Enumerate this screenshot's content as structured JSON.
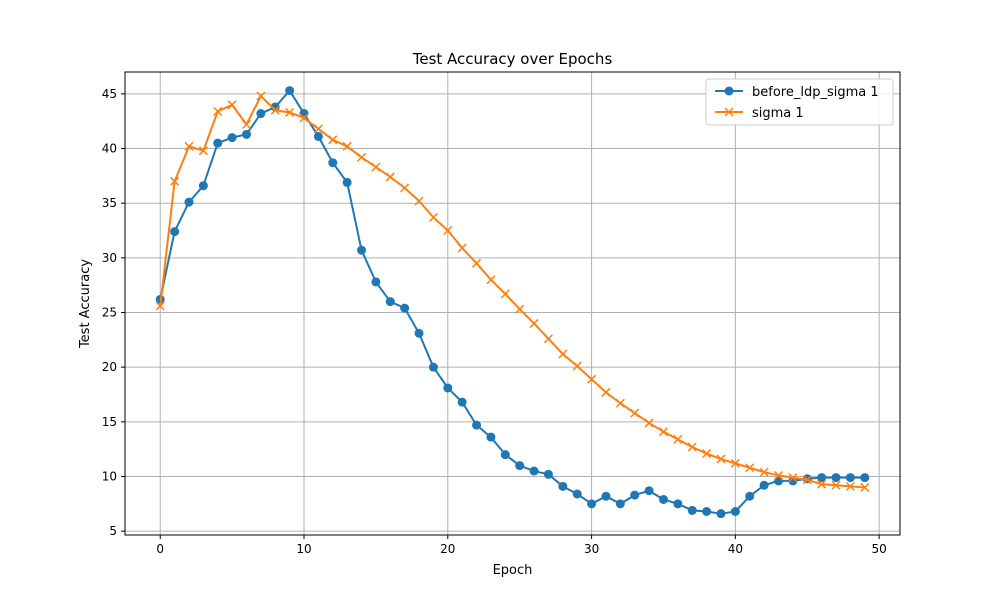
{
  "chart_data": {
    "type": "line",
    "title": "Test Accuracy over Epochs",
    "xlabel": "Epoch",
    "ylabel": "Test Accuracy",
    "xlim": [
      -2.45,
      51.45
    ],
    "ylim": [
      4.65,
      47.0
    ],
    "xticks": [
      0,
      10,
      20,
      30,
      40,
      50
    ],
    "yticks": [
      5,
      10,
      15,
      20,
      25,
      30,
      35,
      40,
      45
    ],
    "grid": true,
    "legend_position": "upper right",
    "x": [
      0,
      1,
      2,
      3,
      4,
      5,
      6,
      7,
      8,
      9,
      10,
      11,
      12,
      13,
      14,
      15,
      16,
      17,
      18,
      19,
      20,
      21,
      22,
      23,
      24,
      25,
      26,
      27,
      28,
      29,
      30,
      31,
      32,
      33,
      34,
      35,
      36,
      37,
      38,
      39,
      40,
      41,
      42,
      43,
      44,
      45,
      46,
      47,
      48,
      49
    ],
    "series": [
      {
        "name": "before_ldp_sigma 1",
        "color": "#1f77b4",
        "marker": "circle",
        "values": [
          26.2,
          32.4,
          35.1,
          36.6,
          40.5,
          41.0,
          41.3,
          43.2,
          43.8,
          45.3,
          43.2,
          41.1,
          38.7,
          36.9,
          30.7,
          27.8,
          26.0,
          25.4,
          23.1,
          20.0,
          18.1,
          16.8,
          14.7,
          13.6,
          12.0,
          11.0,
          10.5,
          10.2,
          9.1,
          8.4,
          7.5,
          8.2,
          7.5,
          8.3,
          8.7,
          7.9,
          7.5,
          6.9,
          6.8,
          6.6,
          6.8,
          8.2,
          9.2,
          9.6,
          9.6,
          9.8,
          9.9,
          9.9,
          9.9,
          9.9
        ]
      },
      {
        "name": "sigma 1",
        "color": "#ff7f0e",
        "marker": "x",
        "values": [
          25.6,
          37.0,
          40.2,
          39.8,
          43.4,
          44.0,
          42.2,
          44.8,
          43.5,
          43.3,
          42.8,
          41.8,
          40.8,
          40.2,
          39.2,
          38.3,
          37.4,
          36.4,
          35.2,
          33.7,
          32.5,
          30.9,
          29.5,
          28.0,
          26.7,
          25.3,
          24.0,
          22.6,
          21.2,
          20.1,
          18.9,
          17.7,
          16.7,
          15.8,
          14.9,
          14.1,
          13.4,
          12.7,
          12.1,
          11.6,
          11.2,
          10.8,
          10.4,
          10.1,
          9.9,
          9.7,
          9.3,
          9.2,
          9.1,
          9.0
        ]
      }
    ]
  }
}
